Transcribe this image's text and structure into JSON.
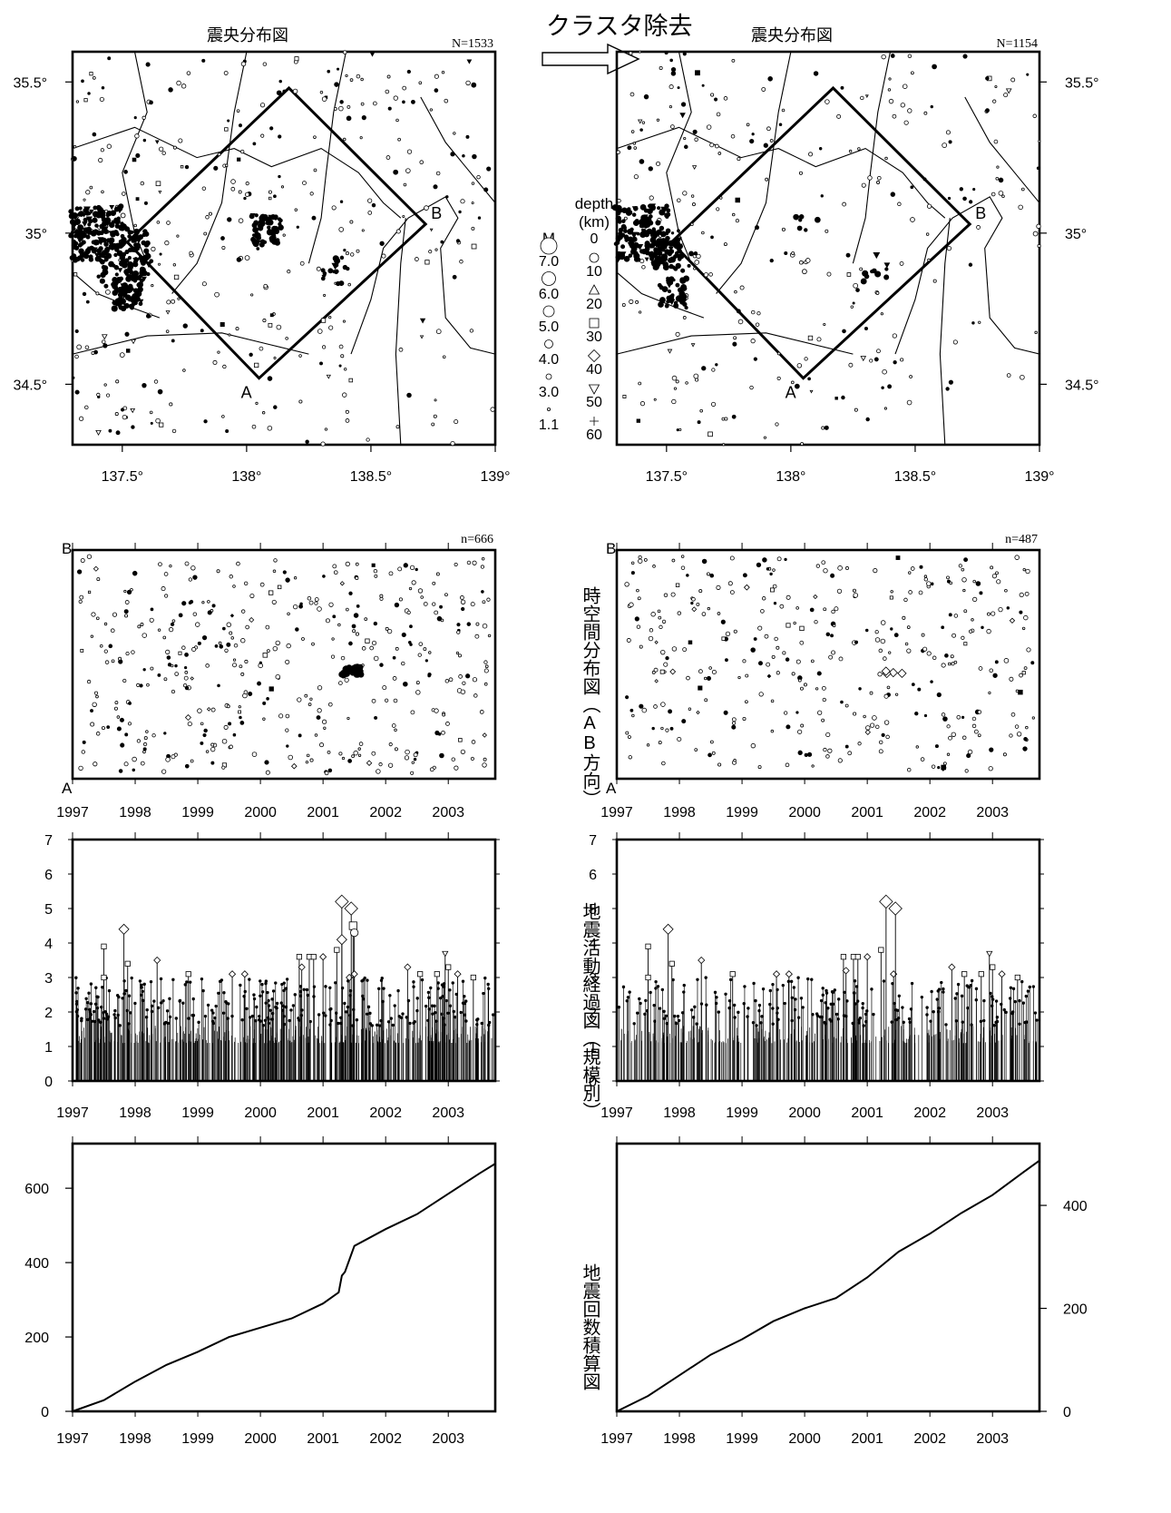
{
  "header": {
    "arrow_label": "クラスタ除去"
  },
  "colors": {
    "ink": "#000000",
    "background": "#ffffff"
  },
  "vertical_labels": {
    "spacetime": "時空間分布図（AB方向）",
    "magnitude": "地震活動経過図（規模別）",
    "cumulative": "地震回数積算図"
  },
  "legend": {
    "m_title": "M",
    "depth_title": "depth",
    "depth_unit": "(km)",
    "m_values": [
      "7.0",
      "6.0",
      "5.0",
      "4.0",
      "3.0",
      "1.1"
    ],
    "depth_values": [
      "0",
      "10",
      "20",
      "30",
      "40",
      "50",
      "60"
    ],
    "depth_symbols": [
      "circle-icon",
      "triangle-icon",
      "square-icon",
      "diamond-icon",
      "inverted-triangle-icon",
      "plus-icon"
    ]
  },
  "chart_data": [
    {
      "id": "map_left",
      "type": "scatter",
      "title": "震央分布図",
      "count_label": "N=1533",
      "xlim": [
        137.3,
        139.0
      ],
      "ylim": [
        34.3,
        35.6
      ],
      "x_ticks": [
        "137.5°",
        "138°",
        "138.5°",
        "139°"
      ],
      "y_ticks": [
        "35.5°",
        "35°",
        "34.5°"
      ],
      "y_tick_side": "left",
      "profile_labels": [
        "A",
        "B"
      ],
      "profile_box": [
        [
          138.17,
          35.48
        ],
        [
          138.72,
          35.03
        ],
        [
          138.05,
          34.52
        ],
        [
          137.52,
          34.97
        ]
      ],
      "clusters": [
        {
          "lon": 137.4,
          "lat": 35.0,
          "events": 150
        },
        {
          "lon": 137.5,
          "lat": 34.93,
          "events": 110
        },
        {
          "lon": 137.52,
          "lat": 34.8,
          "events": 60
        },
        {
          "lon": 138.08,
          "lat": 35.01,
          "events": 55
        },
        {
          "lon": 138.35,
          "lat": 34.88,
          "events": 18
        }
      ]
    },
    {
      "id": "map_right",
      "type": "scatter",
      "title": "震央分布図",
      "count_label": "N=1154",
      "xlim": [
        137.3,
        139.0
      ],
      "ylim": [
        34.3,
        35.6
      ],
      "x_ticks": [
        "137.5°",
        "138°",
        "138.5°",
        "139°"
      ],
      "y_ticks": [
        "35.5°",
        "35°",
        "34.5°"
      ],
      "y_tick_side": "right",
      "profile_labels": [
        "A",
        "B"
      ],
      "profile_box": [
        [
          138.17,
          35.48
        ],
        [
          138.72,
          35.03
        ],
        [
          138.05,
          34.52
        ],
        [
          137.52,
          34.97
        ]
      ],
      "clusters": [
        {
          "lon": 137.4,
          "lat": 35.0,
          "events": 130
        },
        {
          "lon": 137.5,
          "lat": 34.93,
          "events": 70
        },
        {
          "lon": 137.52,
          "lat": 34.8,
          "events": 40
        },
        {
          "lon": 138.08,
          "lat": 35.01,
          "events": 6
        },
        {
          "lon": 138.35,
          "lat": 34.88,
          "events": 10
        }
      ]
    },
    {
      "id": "spacetime_left",
      "type": "scatter",
      "count_label": "n=666",
      "x_ticks": [
        "1997",
        "1998",
        "1999",
        "2000",
        "2001",
        "2002",
        "2003"
      ],
      "xlim": [
        1997.0,
        2003.75
      ],
      "y_end_labels": [
        "B",
        "A"
      ],
      "cluster": {
        "time": 2001.45,
        "position": 0.53
      }
    },
    {
      "id": "spacetime_right",
      "type": "scatter",
      "count_label": "n=487",
      "x_ticks": [
        "1997",
        "1998",
        "1999",
        "2000",
        "2001",
        "2002",
        "2003"
      ],
      "xlim": [
        1997.0,
        2003.75
      ],
      "y_end_labels": [
        "B",
        "A"
      ],
      "cluster": {
        "time": 2001.4,
        "position": 0.53
      }
    },
    {
      "id": "mt_left",
      "type": "bar",
      "xlim": [
        1997.0,
        2003.75
      ],
      "ylim": [
        0,
        7
      ],
      "x_ticks": [
        "1997",
        "1998",
        "1999",
        "2000",
        "2001",
        "2002",
        "2003"
      ],
      "y_ticks": [
        "0",
        "1",
        "2",
        "3",
        "4",
        "5",
        "6",
        "7"
      ],
      "large_events": [
        {
          "t": 1997.5,
          "m": 3.9,
          "s": "square"
        },
        {
          "t": 1997.5,
          "m": 3.0,
          "s": "square"
        },
        {
          "t": 1997.82,
          "m": 4.4,
          "s": "diamond"
        },
        {
          "t": 1997.88,
          "m": 3.4,
          "s": "square"
        },
        {
          "t": 1998.35,
          "m": 3.5,
          "s": "diamond"
        },
        {
          "t": 1998.85,
          "m": 3.1,
          "s": "square"
        },
        {
          "t": 1999.55,
          "m": 3.1,
          "s": "diamond"
        },
        {
          "t": 1999.75,
          "m": 3.1,
          "s": "diamond"
        },
        {
          "t": 2000.62,
          "m": 3.6,
          "s": "square"
        },
        {
          "t": 2000.66,
          "m": 3.3,
          "s": "diamond"
        },
        {
          "t": 2000.78,
          "m": 3.6,
          "s": "square"
        },
        {
          "t": 2000.85,
          "m": 3.6,
          "s": "square"
        },
        {
          "t": 2001.0,
          "m": 3.6,
          "s": "diamond"
        },
        {
          "t": 2001.22,
          "m": 3.8,
          "s": "square"
        },
        {
          "t": 2001.3,
          "m": 5.2,
          "s": "diamond"
        },
        {
          "t": 2001.3,
          "m": 4.1,
          "s": "diamond"
        },
        {
          "t": 2001.42,
          "m": 3.0,
          "s": "diamond"
        },
        {
          "t": 2001.45,
          "m": 5.0,
          "s": "diamond"
        },
        {
          "t": 2001.48,
          "m": 4.5,
          "s": "square"
        },
        {
          "t": 2001.5,
          "m": 4.3,
          "s": "circle"
        },
        {
          "t": 2001.5,
          "m": 3.1,
          "s": "diamond"
        },
        {
          "t": 2002.35,
          "m": 3.3,
          "s": "diamond"
        },
        {
          "t": 2002.55,
          "m": 3.1,
          "s": "square"
        },
        {
          "t": 2002.82,
          "m": 3.1,
          "s": "square"
        },
        {
          "t": 2002.95,
          "m": 3.7,
          "s": "inverted-triangle"
        },
        {
          "t": 2003.0,
          "m": 3.3,
          "s": "square"
        },
        {
          "t": 2003.15,
          "m": 3.1,
          "s": "diamond"
        },
        {
          "t": 2003.4,
          "m": 3.0,
          "s": "square"
        }
      ]
    },
    {
      "id": "mt_right",
      "type": "bar",
      "xlim": [
        1997.0,
        2003.75
      ],
      "ylim": [
        0,
        7
      ],
      "x_ticks": [
        "1997",
        "1998",
        "1999",
        "2000",
        "2001",
        "2002",
        "2003"
      ],
      "y_ticks": [
        "0",
        "1",
        "2",
        "3",
        "4",
        "5",
        "6",
        "7"
      ],
      "large_events": [
        {
          "t": 1997.5,
          "m": 3.9,
          "s": "square"
        },
        {
          "t": 1997.5,
          "m": 3.0,
          "s": "square"
        },
        {
          "t": 1997.82,
          "m": 4.4,
          "s": "diamond"
        },
        {
          "t": 1997.88,
          "m": 3.4,
          "s": "square"
        },
        {
          "t": 1998.35,
          "m": 3.5,
          "s": "diamond"
        },
        {
          "t": 1998.85,
          "m": 3.1,
          "s": "square"
        },
        {
          "t": 1999.55,
          "m": 3.1,
          "s": "diamond"
        },
        {
          "t": 1999.75,
          "m": 3.1,
          "s": "diamond"
        },
        {
          "t": 2000.62,
          "m": 3.6,
          "s": "square"
        },
        {
          "t": 2000.66,
          "m": 3.2,
          "s": "diamond"
        },
        {
          "t": 2000.78,
          "m": 3.6,
          "s": "square"
        },
        {
          "t": 2000.85,
          "m": 3.6,
          "s": "square"
        },
        {
          "t": 2001.0,
          "m": 3.6,
          "s": "diamond"
        },
        {
          "t": 2001.22,
          "m": 3.8,
          "s": "square"
        },
        {
          "t": 2001.3,
          "m": 5.2,
          "s": "diamond"
        },
        {
          "t": 2001.42,
          "m": 3.1,
          "s": "diamond"
        },
        {
          "t": 2001.45,
          "m": 5.0,
          "s": "diamond"
        },
        {
          "t": 2002.35,
          "m": 3.3,
          "s": "diamond"
        },
        {
          "t": 2002.55,
          "m": 3.1,
          "s": "square"
        },
        {
          "t": 2002.82,
          "m": 3.1,
          "s": "square"
        },
        {
          "t": 2002.95,
          "m": 3.7,
          "s": "inverted-triangle"
        },
        {
          "t": 2003.0,
          "m": 3.3,
          "s": "square"
        },
        {
          "t": 2003.15,
          "m": 3.1,
          "s": "diamond"
        },
        {
          "t": 2003.4,
          "m": 3.0,
          "s": "square"
        }
      ]
    },
    {
      "id": "cum_left",
      "type": "line",
      "xlim": [
        1997.0,
        2003.75
      ],
      "ylim": [
        0,
        720
      ],
      "x_ticks": [
        "1997",
        "1998",
        "1999",
        "2000",
        "2001",
        "2002",
        "2003"
      ],
      "y_ticks": [
        "0",
        "200",
        "400",
        "600"
      ],
      "y_tick_values": [
        0,
        200,
        400,
        600
      ],
      "y_tick_side": "left",
      "x": [
        1997.0,
        1997.5,
        1998.0,
        1998.5,
        1999.0,
        1999.5,
        2000.0,
        2000.5,
        2001.0,
        2001.25,
        2001.3,
        2001.35,
        2001.5,
        2002.0,
        2002.5,
        2003.0,
        2003.5,
        2003.75
      ],
      "y": [
        0,
        30,
        80,
        125,
        160,
        200,
        225,
        250,
        290,
        320,
        365,
        375,
        445,
        490,
        530,
        585,
        640,
        666
      ]
    },
    {
      "id": "cum_right",
      "type": "line",
      "xlim": [
        1997.0,
        2003.75
      ],
      "ylim": [
        0,
        520
      ],
      "x_ticks": [
        "1997",
        "1998",
        "1999",
        "2000",
        "2001",
        "2002",
        "2003"
      ],
      "y_ticks": [
        "0",
        "200",
        "400"
      ],
      "y_tick_values": [
        0,
        200,
        400
      ],
      "y_tick_side": "right",
      "x": [
        1997.0,
        1997.5,
        1998.0,
        1998.5,
        1999.0,
        1999.5,
        2000.0,
        2000.5,
        2001.0,
        2001.5,
        2002.0,
        2002.5,
        2003.0,
        2003.5,
        2003.75
      ],
      "y": [
        0,
        30,
        70,
        110,
        140,
        175,
        200,
        220,
        260,
        310,
        345,
        385,
        420,
        465,
        487
      ]
    }
  ]
}
